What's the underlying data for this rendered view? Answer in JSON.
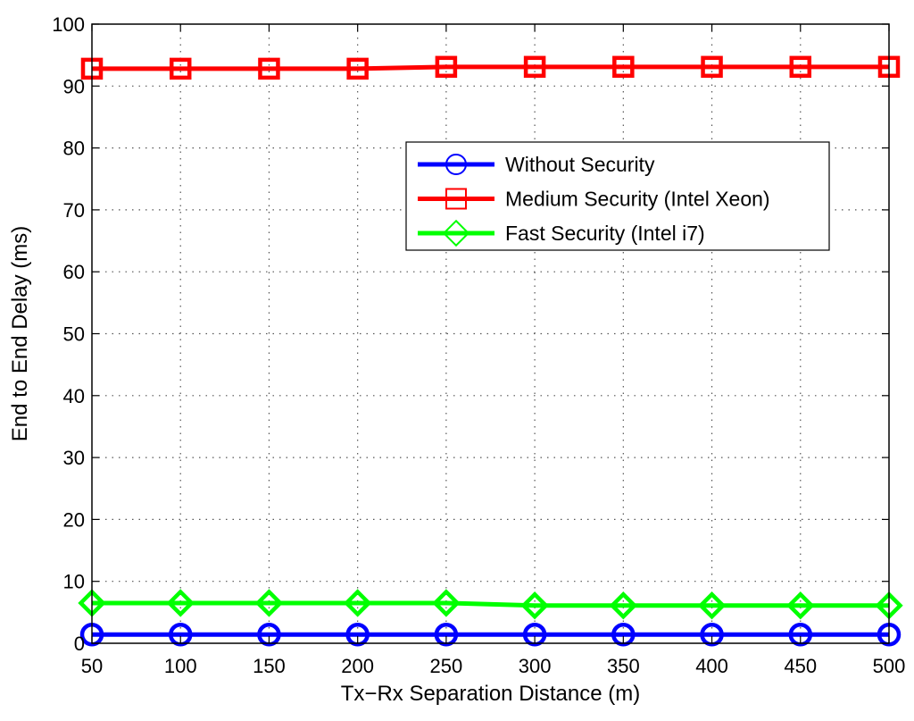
{
  "chart_data": {
    "type": "line",
    "xlabel": "Tx−Rx Separation Distance (m)",
    "ylabel": "End to End Delay (ms)",
    "xlim": [
      50,
      500
    ],
    "ylim": [
      0,
      100
    ],
    "x": [
      50,
      100,
      150,
      200,
      250,
      300,
      350,
      400,
      450,
      500
    ],
    "x_ticks": [
      "50",
      "100",
      "150",
      "200",
      "250",
      "300",
      "350",
      "400",
      "450",
      "500"
    ],
    "y_ticks": [
      "0",
      "10",
      "20",
      "30",
      "40",
      "50",
      "60",
      "70",
      "80",
      "90",
      "100"
    ],
    "grid": true,
    "legend_position": "upper-right",
    "series": [
      {
        "name": "Without Security",
        "color": "#0000ff",
        "marker": "circle",
        "values": [
          1.4,
          1.4,
          1.4,
          1.4,
          1.4,
          1.4,
          1.4,
          1.4,
          1.4,
          1.4
        ]
      },
      {
        "name": "Medium Security (Intel Xeon)",
        "color": "#ff0000",
        "marker": "square",
        "values": [
          92.8,
          92.8,
          92.8,
          92.8,
          93.1,
          93.1,
          93.1,
          93.1,
          93.1,
          93.1
        ]
      },
      {
        "name": "Fast Security (Intel i7)",
        "color": "#00ff00",
        "marker": "diamond",
        "values": [
          6.5,
          6.5,
          6.5,
          6.5,
          6.5,
          6.1,
          6.1,
          6.1,
          6.1,
          6.1
        ]
      }
    ]
  }
}
